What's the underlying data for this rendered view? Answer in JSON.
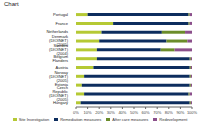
{
  "chart_data": {
    "type": "bar",
    "orientation": "horizontal",
    "stacked": true,
    "title": "Chart",
    "categories": [
      "Portugal",
      "France",
      "Netherlands",
      "Denmark (DIOINET) (2005)",
      "Sweden (DIOINET) (2004)",
      "Belgium Flanders",
      "Austria",
      "Norway (DIOINET) (2005)",
      "Estonia",
      "Czech Republic (DIOINET) (2005)",
      "Hungary"
    ],
    "series": [
      {
        "name": "Site Investigation",
        "color": "#b5c934",
        "values": [
          10,
          32,
          22,
          20,
          18,
          18,
          15,
          7,
          5,
          7,
          4
        ]
      },
      {
        "name": "Remediation measures",
        "color": "#0d2d5e",
        "values": [
          87,
          65,
          52,
          58,
          55,
          80,
          83,
          91,
          93,
          90,
          94
        ]
      },
      {
        "name": "After care measures",
        "color": "#6b8c2a",
        "values": [
          1,
          1,
          20,
          18,
          12,
          1,
          1,
          1,
          1,
          1,
          1
        ]
      },
      {
        "name": "Redevelopment",
        "color": "#8b4f8b",
        "values": [
          2,
          2,
          6,
          4,
          15,
          1,
          1,
          1,
          1,
          2,
          1
        ]
      }
    ],
    "xlim": [
      0,
      100
    ],
    "xticks": [
      {
        "value": 0,
        "label": "0%"
      },
      {
        "value": 10,
        "label": "10%"
      },
      {
        "value": 20,
        "label": "20%"
      },
      {
        "value": 30,
        "label": "30%"
      },
      {
        "value": 40,
        "label": "40%"
      },
      {
        "value": 50,
        "label": "50%"
      },
      {
        "value": 60,
        "label": "60%"
      },
      {
        "value": 70,
        "label": "70%"
      },
      {
        "value": 80,
        "label": "80%"
      },
      {
        "value": 90,
        "label": "90%"
      },
      {
        "value": 100,
        "label": "100%"
      }
    ],
    "grid": false,
    "legend": "bottom"
  }
}
